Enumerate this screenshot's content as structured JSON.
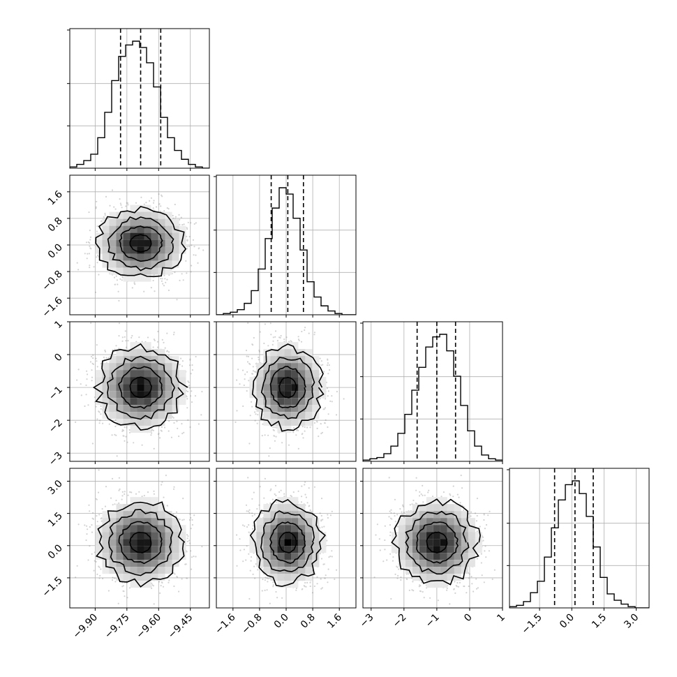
{
  "chart_data": {
    "type": "corner",
    "n_params": 4,
    "quantiles": [
      0.16,
      0.5,
      0.84
    ],
    "grid": true,
    "parameters": [
      {
        "range": [
          -10.02,
          -9.36
        ],
        "median": -9.685,
        "q16": -9.78,
        "q84": -9.59,
        "ticks": [
          -9.9,
          -9.75,
          -9.6,
          -9.45
        ],
        "tick_labels": [
          "−9.90",
          "−9.75",
          "−9.60",
          "−9.45"
        ]
      },
      {
        "range": [
          -2.1,
          2.1
        ],
        "median": 0.05,
        "q16": -0.45,
        "q84": 0.52,
        "ticks": [
          -1.6,
          -0.8,
          0.0,
          0.8,
          1.6
        ],
        "tick_labels": [
          "−1.6",
          "−0.8",
          "0.0",
          "0.8",
          "1.6"
        ]
      },
      {
        "range": [
          -3.25,
          1.0
        ],
        "median": -1.0,
        "q16": -1.6,
        "q84": -0.43,
        "ticks": [
          -3,
          -2,
          -1,
          0,
          1
        ],
        "tick_labels": [
          "−3",
          "−2",
          "−1",
          "0",
          "1"
        ]
      },
      {
        "range": [
          -2.9,
          3.6
        ],
        "median": 0.15,
        "q16": -0.8,
        "q84": 1.0,
        "ticks": [
          -1.5,
          0.0,
          1.5,
          3.0
        ],
        "tick_labels": [
          "−1.5",
          "0.0",
          "1.5",
          "3.0"
        ]
      }
    ],
    "histograms": [
      [
        1,
        3,
        6,
        11,
        24,
        44,
        69,
        88,
        97,
        100,
        95,
        83,
        64,
        40,
        24,
        14,
        7,
        3,
        1,
        0
      ],
      [
        0,
        1,
        2,
        4,
        9,
        19,
        36,
        60,
        84,
        100,
        95,
        76,
        51,
        26,
        14,
        7,
        3,
        1,
        0,
        0
      ],
      [
        1,
        2,
        3,
        6,
        12,
        22,
        37,
        56,
        74,
        90,
        98,
        100,
        87,
        67,
        44,
        24,
        12,
        5,
        2,
        1
      ],
      [
        1,
        2,
        5,
        12,
        21,
        40,
        63,
        85,
        97,
        100,
        90,
        72,
        48,
        24,
        11,
        6,
        3,
        1,
        0,
        0
      ]
    ],
    "correlations": [
      [
        1,
        0,
        0,
        0
      ],
      [
        0,
        1,
        0,
        0
      ],
      [
        0,
        0,
        1,
        0
      ],
      [
        0,
        0,
        0,
        1
      ]
    ],
    "colors": {
      "lines": "#000000",
      "grid": "#b0b0b0",
      "points": "#7f7f7f",
      "quantile_lines": "#000000"
    }
  }
}
